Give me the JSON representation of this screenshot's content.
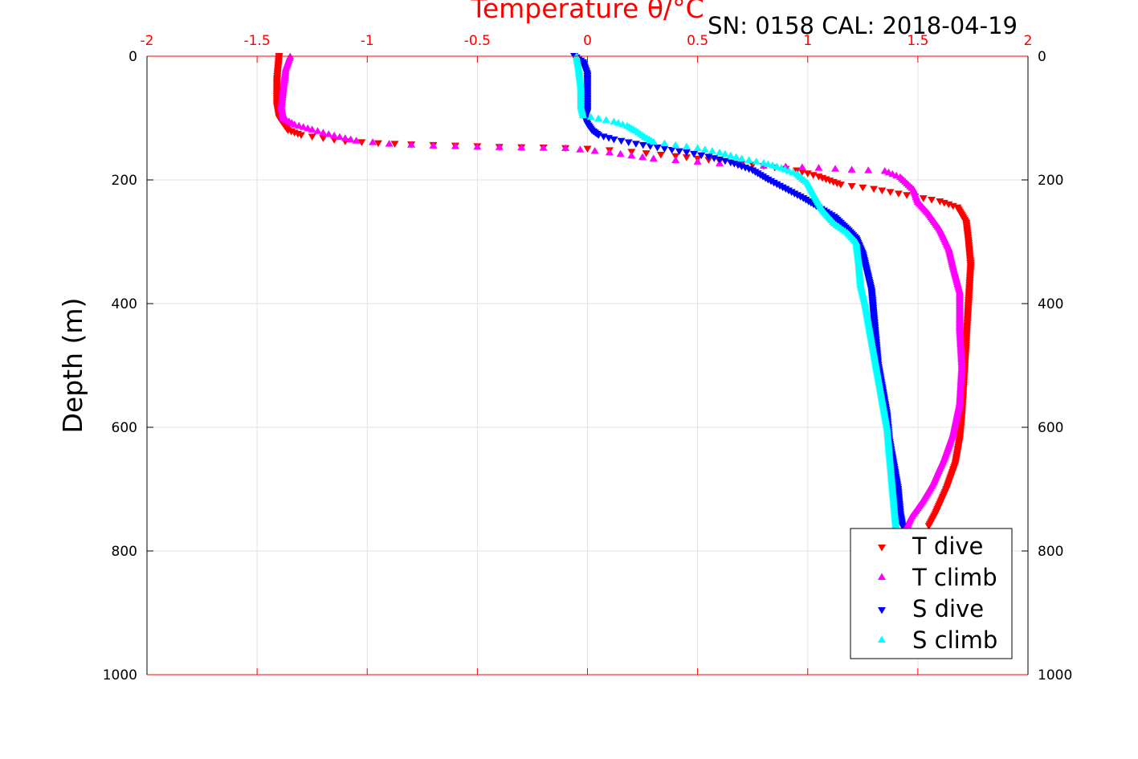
{
  "chart_data": {
    "type": "scatter",
    "title": "SN: 0158  CAL: 2018-04-19",
    "xlabel": "Temperature θ/°C",
    "ylabel": "Depth (m)",
    "xlim": [
      -2,
      2
    ],
    "ylim": [
      0,
      1000
    ],
    "y_reversed": true,
    "x_axis_position": "top",
    "x_ticks": [
      "-2",
      "-1.5",
      "-1",
      "-0.5",
      "0",
      "0.5",
      "1",
      "1.5",
      "2"
    ],
    "y_ticks": [
      "0",
      "200",
      "400",
      "600",
      "800",
      "1000"
    ],
    "grid": true,
    "legend_position": "bottom-right",
    "series": [
      {
        "name": "T dive",
        "color": "#ff0000",
        "marker": "triangle-down",
        "points": [
          [
            -1.4,
            0
          ],
          [
            -1.41,
            40
          ],
          [
            -1.41,
            80
          ],
          [
            -1.4,
            100
          ],
          [
            -1.38,
            110
          ],
          [
            -1.36,
            120
          ],
          [
            -1.3,
            128
          ],
          [
            -1.2,
            133
          ],
          [
            -1.1,
            138
          ],
          [
            -0.95,
            141
          ],
          [
            -0.8,
            143
          ],
          [
            -0.6,
            145
          ],
          [
            -0.4,
            147
          ],
          [
            -0.2,
            148
          ],
          [
            0.0,
            150
          ],
          [
            0.2,
            155
          ],
          [
            0.4,
            162
          ],
          [
            0.6,
            170
          ],
          [
            0.8,
            178
          ],
          [
            0.95,
            185
          ],
          [
            1.05,
            195
          ],
          [
            1.15,
            208
          ],
          [
            1.3,
            215
          ],
          [
            1.45,
            225
          ],
          [
            1.6,
            235
          ],
          [
            1.68,
            245
          ],
          [
            1.72,
            270
          ],
          [
            1.73,
            300
          ],
          [
            1.74,
            340
          ],
          [
            1.73,
            400
          ],
          [
            1.72,
            460
          ],
          [
            1.71,
            520
          ],
          [
            1.7,
            580
          ],
          [
            1.69,
            620
          ],
          [
            1.67,
            660
          ],
          [
            1.63,
            700
          ],
          [
            1.58,
            740
          ],
          [
            1.55,
            760
          ]
        ]
      },
      {
        "name": "T climb",
        "color": "#ff00ff",
        "marker": "triangle-up",
        "points": [
          [
            -1.35,
            0
          ],
          [
            -1.37,
            20
          ],
          [
            -1.38,
            50
          ],
          [
            -1.39,
            80
          ],
          [
            -1.38,
            100
          ],
          [
            -1.33,
            110
          ],
          [
            -1.25,
            118
          ],
          [
            -1.15,
            128
          ],
          [
            -1.05,
            136
          ],
          [
            -0.9,
            141
          ],
          [
            -0.7,
            144
          ],
          [
            -0.5,
            146
          ],
          [
            -0.3,
            147
          ],
          [
            -0.1,
            148
          ],
          [
            0.1,
            155
          ],
          [
            0.3,
            165
          ],
          [
            0.5,
            170
          ],
          [
            0.7,
            175
          ],
          [
            0.9,
            178
          ],
          [
            1.05,
            180
          ],
          [
            1.2,
            183
          ],
          [
            1.35,
            185
          ],
          [
            1.42,
            195
          ],
          [
            1.48,
            215
          ],
          [
            1.5,
            235
          ],
          [
            1.55,
            255
          ],
          [
            1.6,
            280
          ],
          [
            1.64,
            310
          ],
          [
            1.66,
            340
          ],
          [
            1.69,
            380
          ],
          [
            1.69,
            440
          ],
          [
            1.7,
            500
          ],
          [
            1.69,
            560
          ],
          [
            1.66,
            610
          ],
          [
            1.62,
            650
          ],
          [
            1.57,
            690
          ],
          [
            1.52,
            720
          ],
          [
            1.47,
            745
          ],
          [
            1.45,
            760
          ]
        ]
      },
      {
        "name": "S dive",
        "color": "#0000ff",
        "marker": "triangle-down",
        "points": [
          [
            -0.06,
            0
          ],
          [
            -0.02,
            10
          ],
          [
            0.0,
            30
          ],
          [
            0.0,
            60
          ],
          [
            0.0,
            90
          ],
          [
            -0.01,
            100
          ],
          [
            0.0,
            110
          ],
          [
            0.02,
            120
          ],
          [
            0.05,
            128
          ],
          [
            0.12,
            135
          ],
          [
            0.22,
            142
          ],
          [
            0.35,
            150
          ],
          [
            0.45,
            156
          ],
          [
            0.55,
            163
          ],
          [
            0.65,
            172
          ],
          [
            0.75,
            185
          ],
          [
            0.82,
            200
          ],
          [
            0.9,
            215
          ],
          [
            0.98,
            230
          ],
          [
            1.05,
            245
          ],
          [
            1.12,
            260
          ],
          [
            1.18,
            280
          ],
          [
            1.22,
            295
          ],
          [
            1.25,
            320
          ],
          [
            1.27,
            350
          ],
          [
            1.29,
            380
          ],
          [
            1.3,
            420
          ],
          [
            1.31,
            460
          ],
          [
            1.32,
            500
          ],
          [
            1.34,
            540
          ],
          [
            1.36,
            580
          ],
          [
            1.37,
            620
          ],
          [
            1.39,
            660
          ],
          [
            1.41,
            700
          ],
          [
            1.42,
            740
          ],
          [
            1.43,
            760
          ]
        ]
      },
      {
        "name": "S climb",
        "color": "#00ffff",
        "marker": "triangle-up",
        "points": [
          [
            -0.05,
            0
          ],
          [
            -0.04,
            20
          ],
          [
            -0.03,
            50
          ],
          [
            -0.03,
            80
          ],
          [
            -0.02,
            95
          ],
          [
            0.05,
            100
          ],
          [
            0.12,
            105
          ],
          [
            0.18,
            112
          ],
          [
            0.22,
            120
          ],
          [
            0.26,
            130
          ],
          [
            0.3,
            138
          ],
          [
            0.4,
            143
          ],
          [
            0.5,
            148
          ],
          [
            0.6,
            155
          ],
          [
            0.7,
            165
          ],
          [
            0.8,
            172
          ],
          [
            0.88,
            180
          ],
          [
            0.95,
            190
          ],
          [
            1.0,
            205
          ],
          [
            1.03,
            225
          ],
          [
            1.07,
            250
          ],
          [
            1.12,
            270
          ],
          [
            1.18,
            285
          ],
          [
            1.22,
            300
          ],
          [
            1.23,
            330
          ],
          [
            1.24,
            370
          ],
          [
            1.26,
            400
          ],
          [
            1.28,
            440
          ],
          [
            1.3,
            480
          ],
          [
            1.32,
            520
          ],
          [
            1.34,
            560
          ],
          [
            1.36,
            600
          ],
          [
            1.37,
            640
          ],
          [
            1.38,
            680
          ],
          [
            1.39,
            720
          ],
          [
            1.4,
            760
          ]
        ]
      }
    ]
  }
}
